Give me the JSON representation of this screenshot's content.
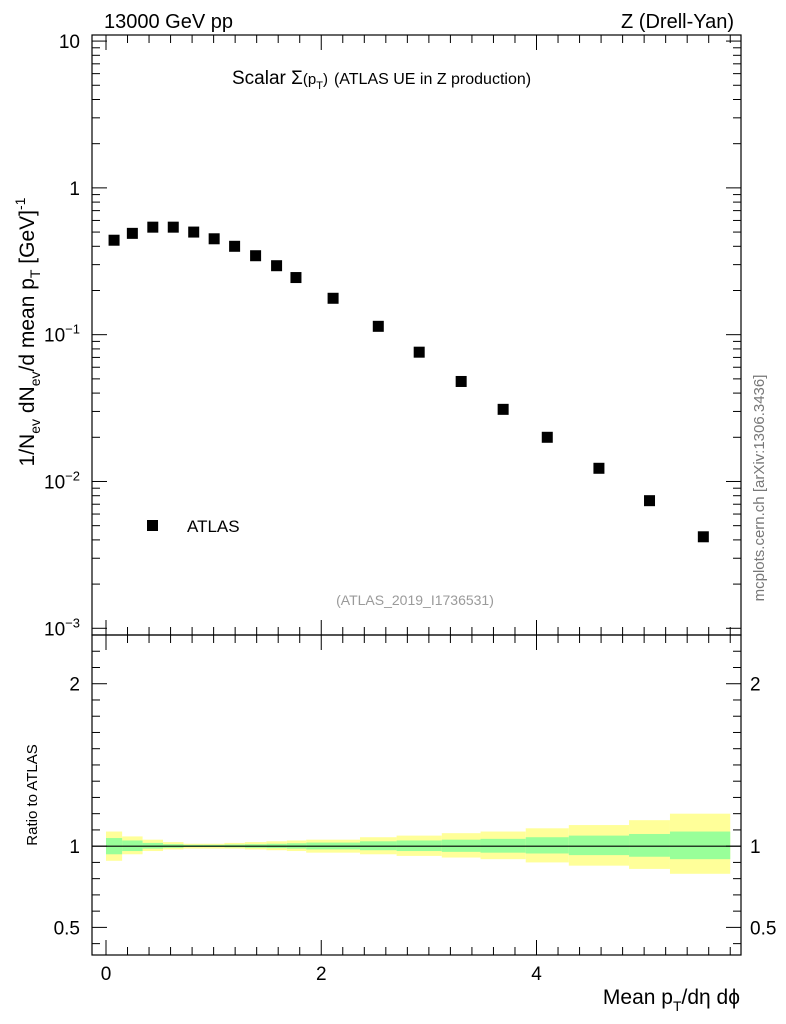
{
  "header": {
    "left": "13000 GeV pp",
    "right": "Z (Drell-Yan)"
  },
  "plot_title": {
    "prefix": "Scalar ",
    "sigma": "Σ",
    "paren_open": "(p",
    "sub": "T",
    "paren_close": ")",
    "rest": "(ATLAS UE in Z production)"
  },
  "watermark": "(ATLAS_2019_I1736531)",
  "side_label": "mcplots.cern.ch [arXiv:1306.3436]",
  "ylabel_main": {
    "a": "1/N",
    "a_sub": "ev",
    "b": " dN",
    "b_sub": "ev",
    "c": "/d mean p",
    "c_sub": "T",
    "d": " [GeV]",
    "d_sup": "-1"
  },
  "ylabel_ratio": "Ratio to ATLAS",
  "xlabel": {
    "a": "Mean p",
    "a_sub": "T",
    "b": "/dη dϕ"
  },
  "legend": {
    "entry": "ATLAS"
  },
  "main_ticks": {
    "y": [
      {
        "base": "10",
        "exp": "",
        "value": 10
      },
      {
        "base": "1",
        "exp": "",
        "value": 1
      },
      {
        "base": "10",
        "exp": "−1",
        "value": 0.1
      },
      {
        "base": "10",
        "exp": "−2",
        "value": 0.01
      },
      {
        "base": "10",
        "exp": "−3",
        "value": 0.001
      }
    ]
  },
  "ratio_ticks": {
    "y": [
      "2",
      "1",
      "0.5"
    ]
  },
  "x_ticks": [
    "0",
    "2",
    "4"
  ],
  "colors": {
    "marker": "#000000",
    "band_outer": "#ffff99",
    "band_inner": "#99ff99"
  },
  "chart_data": [
    {
      "type": "scatter",
      "title": "Scalar Σ(pT) (ATLAS UE in Z production)",
      "xlabel": "Mean pT/dη dϕ",
      "ylabel": "1/Nev dNev/d mean pT [GeV]-1",
      "yscale": "log",
      "xlim": [
        -0.13,
        5.9
      ],
      "ylim": [
        0.0009,
        11
      ],
      "series": [
        {
          "name": "ATLAS",
          "x": [
            0.075,
            0.245,
            0.435,
            0.625,
            0.815,
            1.005,
            1.195,
            1.39,
            1.585,
            1.765,
            2.11,
            2.53,
            2.91,
            3.3,
            3.69,
            4.1,
            4.58,
            5.05,
            5.55
          ],
          "y": [
            0.44,
            0.49,
            0.54,
            0.54,
            0.5,
            0.45,
            0.4,
            0.345,
            0.295,
            0.245,
            0.177,
            0.114,
            0.076,
            0.048,
            0.031,
            0.02,
            0.0123,
            0.0074,
            0.0042
          ]
        }
      ],
      "grid": false,
      "legend_position": "bottom-left"
    },
    {
      "type": "area",
      "ylabel": "Ratio to ATLAS",
      "xlabel": "Mean pT/dη dϕ",
      "xlim": [
        -0.13,
        5.9
      ],
      "ylim": [
        0.33,
        2.3
      ],
      "bins": [
        0,
        0.15,
        0.34,
        0.53,
        0.72,
        0.91,
        1.1,
        1.29,
        1.49,
        1.68,
        1.86,
        2.36,
        2.7,
        3.12,
        3.48,
        3.9,
        4.3,
        4.86,
        5.24,
        5.8
      ],
      "reference_line": 1,
      "series": [
        {
          "name": "outer",
          "lo": [
            0.91,
            0.95,
            0.97,
            0.98,
            0.985,
            0.985,
            0.985,
            0.98,
            0.975,
            0.97,
            0.96,
            0.95,
            0.94,
            0.93,
            0.92,
            0.9,
            0.88,
            0.86,
            0.83
          ],
          "hi": [
            1.09,
            1.06,
            1.04,
            1.025,
            1.015,
            1.015,
            1.02,
            1.025,
            1.03,
            1.035,
            1.04,
            1.055,
            1.065,
            1.08,
            1.09,
            1.11,
            1.13,
            1.16,
            1.2
          ]
        },
        {
          "name": "inner",
          "lo": [
            0.95,
            0.97,
            0.985,
            0.99,
            0.995,
            0.995,
            0.993,
            0.99,
            0.988,
            0.985,
            0.98,
            0.975,
            0.97,
            0.965,
            0.96,
            0.955,
            0.945,
            0.935,
            0.92
          ],
          "hi": [
            1.05,
            1.035,
            1.02,
            1.012,
            1.008,
            1.008,
            1.01,
            1.012,
            1.015,
            1.018,
            1.022,
            1.03,
            1.035,
            1.04,
            1.045,
            1.055,
            1.065,
            1.075,
            1.09
          ]
        }
      ]
    }
  ]
}
